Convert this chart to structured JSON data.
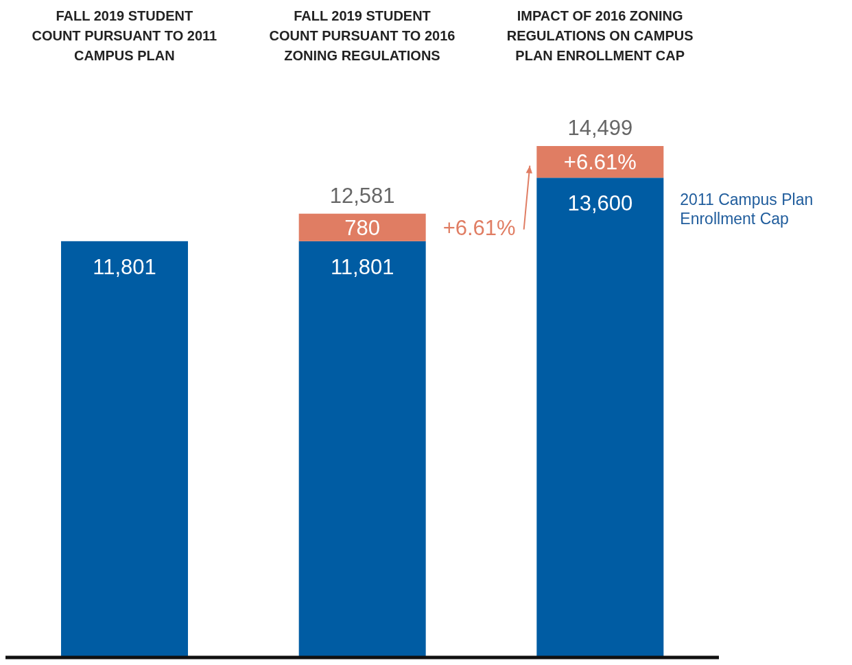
{
  "chart_data": {
    "type": "bar",
    "stacked": true,
    "categories": [
      "FALL 2019 STUDENT COUNT PURSUANT TO 2011 CAMPUS PLAN",
      "FALL 2019 STUDENT COUNT PURSUANT TO 2016 ZONING REGULATIONS",
      "IMPACT OF 2016 ZONING REGULATIONS ON CAMPUS PLAN ENROLLMENT CAP"
    ],
    "series": [
      {
        "color": "#005ca3",
        "values": [
          11801,
          11801,
          13600
        ],
        "value_labels": [
          "11,801",
          "11,801",
          "13,600"
        ]
      },
      {
        "color": "#e07d63",
        "values": [
          null,
          780,
          899
        ],
        "value_labels": [
          null,
          "780",
          null
        ]
      }
    ],
    "totals": [
      null,
      "12,581",
      "14,499"
    ],
    "annotations": [
      "+6.61%",
      "2011 Campus Plan Enrollment Cap",
      "+6.61%"
    ]
  }
}
